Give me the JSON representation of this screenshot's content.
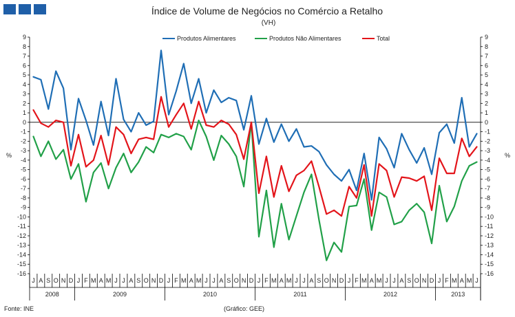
{
  "header": {
    "logo": {
      "icon": "three-blue-squares-logo",
      "color": "#1f5fa8"
    }
  },
  "chart_data": {
    "type": "line",
    "title": "Índice de Volume de Negócios no Comércio a Retalho",
    "subtitle": "(VH)",
    "ylabel_left": "%",
    "ylabel_right": "%",
    "ylim": [
      -16,
      9
    ],
    "yticks": [
      9,
      8,
      7,
      6,
      5,
      4,
      3,
      2,
      1,
      0,
      -1,
      -2,
      -3,
      -4,
      -5,
      -6,
      -7,
      -8,
      -9,
      -10,
      -11,
      -12,
      -13,
      -14,
      -15,
      -16
    ],
    "ytick_labels": [
      "9",
      "8",
      "7",
      "6",
      "5",
      "4",
      "3",
      "2",
      "1",
      "0",
      "-1",
      "-2",
      "-3",
      "-4",
      "-5",
      "-6",
      "-7",
      "-8",
      "-9",
      "-10",
      "-11",
      "-12",
      "-13",
      "-14",
      "-15",
      "-16"
    ],
    "month_labels": [
      "J",
      "A",
      "S",
      "O",
      "N",
      "D",
      "J",
      "F",
      "M",
      "A",
      "M",
      "J",
      "J",
      "A",
      "S",
      "O",
      "N",
      "D",
      "J",
      "F",
      "M",
      "A",
      "M",
      "J",
      "J",
      "A",
      "S",
      "O",
      "N",
      "D",
      "J",
      "F",
      "M",
      "A",
      "M",
      "J",
      "J",
      "A",
      "S",
      "O",
      "N",
      "D",
      "J",
      "F",
      "M",
      "A",
      "M",
      "J",
      "J",
      "A",
      "S",
      "O",
      "N",
      "D",
      "J",
      "F",
      "M",
      "A",
      "M",
      "J"
    ],
    "years": [
      {
        "label": "2008",
        "start": 0,
        "count": 6
      },
      {
        "label": "2009",
        "start": 6,
        "count": 12
      },
      {
        "label": "2010",
        "start": 18,
        "count": 12
      },
      {
        "label": "2011",
        "start": 30,
        "count": 12
      },
      {
        "label": "2012",
        "start": 42,
        "count": 12
      },
      {
        "label": "2013",
        "start": 54,
        "count": 6
      }
    ],
    "legend_position": "top-center",
    "grid": false,
    "series": [
      {
        "name": "Produtos Alimentares",
        "color": "#1f6eb5",
        "values": [
          4.8,
          4.5,
          1.4,
          5.4,
          3.6,
          -2.9,
          2.5,
          0.2,
          -2.4,
          2.2,
          -1.4,
          4.6,
          0.3,
          -1.0,
          1.0,
          -0.3,
          0.1,
          7.6,
          0.8,
          3.3,
          6.2,
          2.0,
          4.6,
          1.0,
          3.4,
          2.1,
          2.6,
          2.3,
          -0.8,
          2.8,
          -2.3,
          0.4,
          -2.1,
          -0.2,
          -2.0,
          -0.7,
          -2.6,
          -2.5,
          -3.1,
          -4.5,
          -5.5,
          -6.2,
          -5.0,
          -7.2,
          -3.3,
          -8.2,
          -1.6,
          -2.8,
          -4.8,
          -1.2,
          -2.9,
          -4.3,
          -2.7,
          -5.5,
          -1.1,
          -0.2,
          -2.2,
          2.6,
          -2.6,
          -1.2
        ]
      },
      {
        "name": "Produtos Não Alimentares",
        "color": "#21a048",
        "values": [
          -1.5,
          -3.6,
          -2.0,
          -3.9,
          -2.9,
          -6.0,
          -4.4,
          -8.4,
          -5.3,
          -4.3,
          -7.0,
          -4.8,
          -3.3,
          -5.3,
          -4.2,
          -2.6,
          -3.2,
          -1.3,
          -1.6,
          -1.2,
          -1.5,
          -2.9,
          0.2,
          -1.5,
          -4.0,
          -1.4,
          -2.3,
          -3.6,
          -6.8,
          0.0,
          -12.1,
          -7.2,
          -13.2,
          -8.6,
          -12.4,
          -9.9,
          -7.4,
          -5.5,
          -10.3,
          -14.6,
          -12.7,
          -13.7,
          -8.9,
          -8.8,
          -6.0,
          -11.4,
          -7.4,
          -7.9,
          -10.8,
          -10.5,
          -9.3,
          -8.6,
          -9.5,
          -12.8,
          -6.7,
          -10.5,
          -8.9,
          -6.2,
          -4.6,
          -4.2
        ]
      },
      {
        "name": "Total",
        "color": "#e3141a",
        "values": [
          1.3,
          -0.1,
          -0.5,
          0.2,
          0.0,
          -4.6,
          -1.3,
          -4.7,
          -4.0,
          -1.4,
          -4.5,
          -0.5,
          -1.3,
          -3.3,
          -1.8,
          -1.6,
          -1.8,
          2.7,
          -0.5,
          0.8,
          2.0,
          -0.7,
          2.2,
          -0.3,
          -0.5,
          0.2,
          -0.2,
          -1.3,
          -3.9,
          0.0,
          -7.5,
          -3.6,
          -7.9,
          -4.6,
          -7.3,
          -5.6,
          -5.1,
          -4.1,
          -6.8,
          -9.7,
          -9.3,
          -9.9,
          -6.8,
          -8.0,
          -4.5,
          -9.9,
          -4.4,
          -5.1,
          -7.9,
          -5.8,
          -5.9,
          -6.2,
          -5.7,
          -9.3,
          -3.8,
          -5.4,
          -5.4,
          -1.7,
          -3.6,
          -2.6
        ]
      }
    ]
  },
  "footer": {
    "source": "Fonte: INE",
    "credit": "(Gráfico: GEE)"
  }
}
